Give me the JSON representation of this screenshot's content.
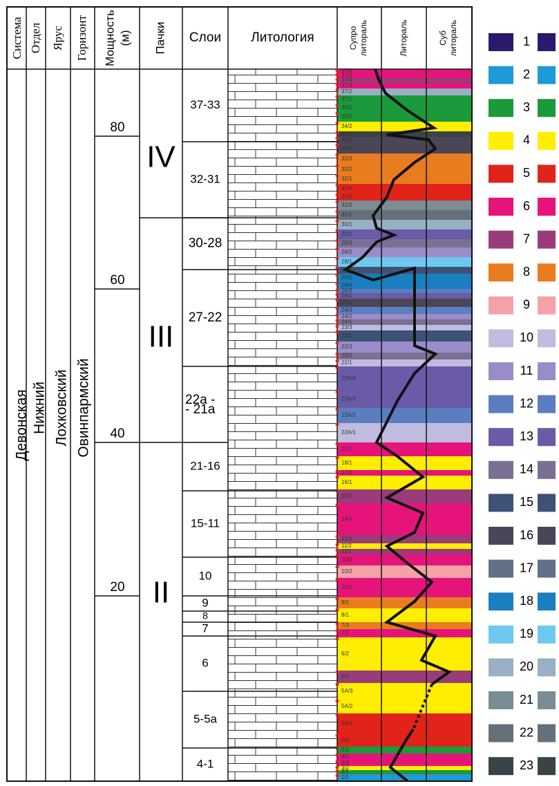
{
  "header": {
    "system": "Система",
    "series": "Отдел",
    "stage": "Ярус",
    "horizon": "Горизонт",
    "thickness": "Мощность",
    "thickness_unit": "(м)",
    "packs": "Пачки",
    "layers": "Слои",
    "lithology": "Литология",
    "supra_1": "Супро",
    "supra_2": "литораль",
    "littoral": "Литораль",
    "sub_1": "Суб",
    "sub_2": "литораль"
  },
  "strat": {
    "system": "Девонская",
    "series": "Нижний",
    "stage": "Лохковский",
    "horizon": "Овинпармский"
  },
  "thickness_ticks": [
    80,
    60,
    40,
    20
  ],
  "packs": [
    "IV",
    "III",
    "II"
  ],
  "layers": [
    "37-33",
    "32-31",
    "30-28",
    "27-22",
    "22а -",
    "- 21а",
    "21-16",
    "15-11",
    "10",
    "9",
    "8",
    "7",
    "6",
    "5-5а",
    "4-1"
  ],
  "bands": [
    {
      "label": "37/6",
      "color": "#e6147a"
    },
    {
      "label": "37/5",
      "color": "#e6147a"
    },
    {
      "label": "37/4",
      "color": "#9a3c7a"
    },
    {
      "label": "37/3",
      "color": "#e6147a"
    },
    {
      "label": "37/2",
      "color": "#98b0c4"
    },
    {
      "label": "37/1",
      "color": "#1a9a3a"
    },
    {
      "label": "36/1",
      "color": "#1a9a3a"
    },
    {
      "label": "35/1",
      "color": "#1a9a3a"
    },
    {
      "label": "34/2",
      "color": "#ffee00"
    },
    {
      "label": "34/1",
      "color": "#3a4448"
    },
    {
      "label": "33/1",
      "color": "#4a4658"
    },
    {
      "label": "32/4",
      "color": "#4a4658"
    },
    {
      "label": "32/3",
      "color": "#e87c1e"
    },
    {
      "label": "32/2",
      "color": "#e87c1e"
    },
    {
      "label": "32/1",
      "color": "#e87c1e"
    },
    {
      "label": "31/4",
      "color": "#e2231a"
    },
    {
      "label": "31/3",
      "color": "#e2231a"
    },
    {
      "label": "31/2",
      "color": "#7a8c94"
    },
    {
      "label": "31/1",
      "color": "#66707a"
    },
    {
      "label": "30/1",
      "color": "#98b0c4"
    },
    {
      "label": "29/1",
      "color": "#6a5aa8"
    },
    {
      "label": "28/3",
      "color": "#7a7094"
    },
    {
      "label": "28/2",
      "color": "#9a8cc8"
    },
    {
      "label": "28/1",
      "color": "#6ec8f0"
    },
    {
      "label": "27/1",
      "color": "#3e5278"
    },
    {
      "label": "26/5",
      "color": "#1a7ec0"
    },
    {
      "label": "26/4",
      "color": "#1a7ec0"
    },
    {
      "label": "26/3",
      "color": "#5a7ec0"
    },
    {
      "label": "26/1",
      "color": "#6a5aa8"
    },
    {
      "label": "25/1",
      "color": "#4a4658"
    },
    {
      "label": "24/3",
      "color": "#5a7ec0"
    },
    {
      "label": "24/2",
      "color": "#9a8cc8"
    },
    {
      "label": "24/1",
      "color": "#7a7094"
    },
    {
      "label": "23/3",
      "color": "#c0bce0"
    },
    {
      "label": "23/1",
      "color": "#3e5278"
    },
    {
      "label": "22/3",
      "color": "#9a8cc8"
    },
    {
      "label": "22/2",
      "color": "#7a7094"
    },
    {
      "label": "22/1",
      "color": "#c0bce0"
    },
    {
      "label": "22А/4",
      "color": "#6a5aa8"
    },
    {
      "label": "22А/3",
      "color": "#6a5aa8"
    },
    {
      "label": "22А/2",
      "color": "#5a7ec0"
    },
    {
      "label": "22А/1",
      "color": "#c0bce0"
    },
    {
      "label": "21/1",
      "color": "#e6147a"
    },
    {
      "label": "18/1",
      "color": "#ffee00"
    },
    {
      "label": "17/1",
      "color": "#e6147a"
    },
    {
      "label": "16/1",
      "color": "#ffee00"
    },
    {
      "label": "15/1",
      "color": "#9a3c7a"
    },
    {
      "label": "14/1",
      "color": "#e6147a"
    },
    {
      "label": "12/1",
      "color": "#9a3c7a"
    },
    {
      "label": "11/2",
      "color": "#ffee00"
    },
    {
      "label": "11/1",
      "color": "#9a3c7a"
    },
    {
      "label": "10/3",
      "color": "#e6147a"
    },
    {
      "label": "10/2",
      "color": "#f4a2a8"
    },
    {
      "label": "10/1",
      "color": "#e6147a"
    },
    {
      "label": "9/1",
      "color": "#e87c1e"
    },
    {
      "label": "8/1",
      "color": "#ffee00"
    },
    {
      "label": "7/3",
      "color": "#e87c1e"
    },
    {
      "label": "7/1",
      "color": "#e6147a"
    },
    {
      "label": "6/2",
      "color": "#ffee00"
    },
    {
      "label": "6/1",
      "color": "#9a3c7a"
    },
    {
      "label": "5А/3",
      "color": "#ffee00"
    },
    {
      "label": "5А/2",
      "color": "#ffee00"
    },
    {
      "label": "5А/1",
      "color": "#e2231a"
    },
    {
      "label": "5/2",
      "color": "#e2231a"
    },
    {
      "label": "5/1",
      "color": "#1a9a3a"
    },
    {
      "label": "4/1",
      "color": "#e6147a"
    },
    {
      "label": "3/3",
      "color": "#e6147a"
    },
    {
      "label": "3/2",
      "color": "#ffee00"
    },
    {
      "label": "3/1",
      "color": "#1a9a3a"
    },
    {
      "label": "2/1",
      "color": "#1e9ad6"
    }
  ],
  "legend": [
    {
      "label": "1",
      "color": "#2a1a6e"
    },
    {
      "label": "2",
      "color": "#1e9ad6"
    },
    {
      "label": "3",
      "color": "#1a9a3a"
    },
    {
      "label": "4",
      "color": "#ffee00"
    },
    {
      "label": "5",
      "color": "#e2231a"
    },
    {
      "label": "6",
      "color": "#e6147a"
    },
    {
      "label": "7",
      "color": "#9a3c7a"
    },
    {
      "label": "8",
      "color": "#e87c1e"
    },
    {
      "label": "9",
      "color": "#f4a2a8"
    },
    {
      "label": "10",
      "color": "#c0bce0"
    },
    {
      "label": "11",
      "color": "#9a8cc8"
    },
    {
      "label": "12",
      "color": "#5a7ec0"
    },
    {
      "label": "13",
      "color": "#6a5aa8"
    },
    {
      "label": "14",
      "color": "#7a7094"
    },
    {
      "label": "15",
      "color": "#3e5278"
    },
    {
      "label": "16",
      "color": "#4a4658"
    },
    {
      "label": "17",
      "color": "#627088"
    },
    {
      "label": "18",
      "color": "#1a7ec0"
    },
    {
      "label": "19",
      "color": "#6ec8f0"
    },
    {
      "label": "20",
      "color": "#98b0c4"
    },
    {
      "label": "21",
      "color": "#7a8c94"
    },
    {
      "label": "22",
      "color": "#66707a"
    },
    {
      "label": "23",
      "color": "#3a4448"
    }
  ]
}
